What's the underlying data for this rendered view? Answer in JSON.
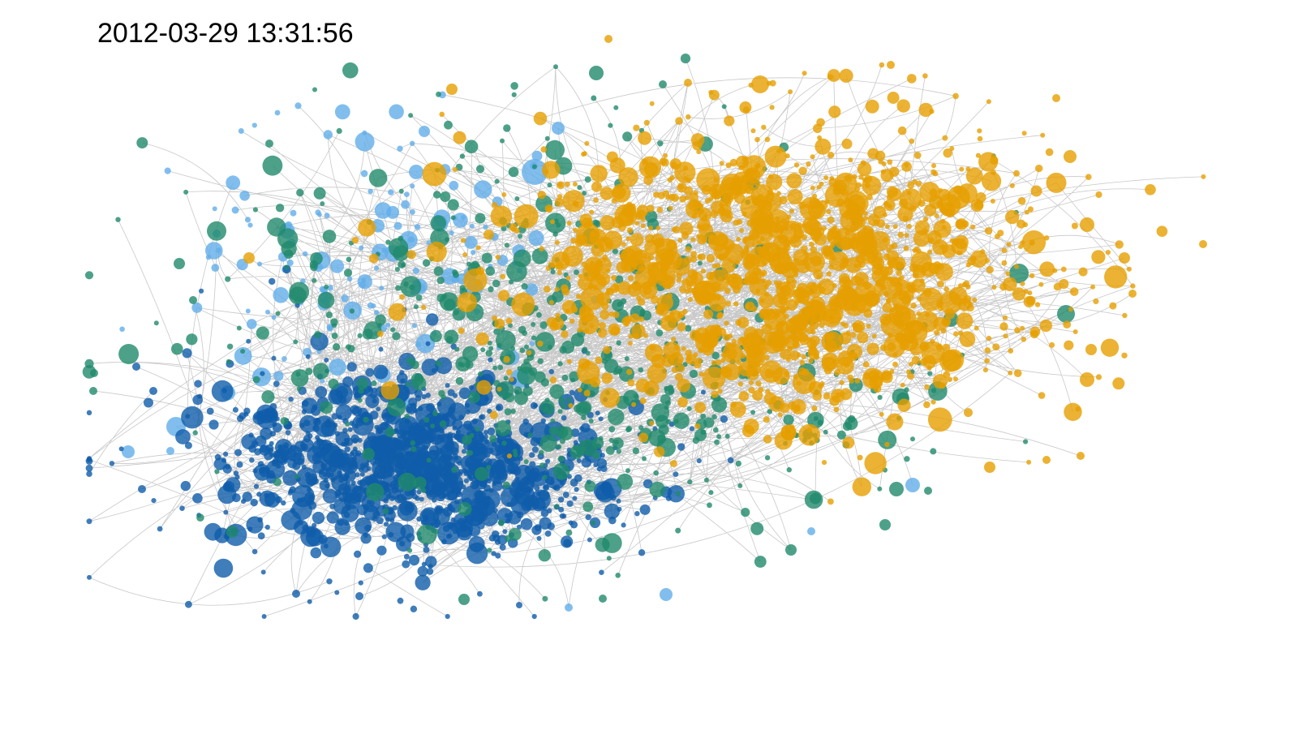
{
  "header": {
    "timestamp": "2012-03-29 13:31:56"
  },
  "graph": {
    "communities": [
      {
        "id": "orange",
        "color": "#E69F00"
      },
      {
        "id": "dark-blue",
        "color": "#0F5CAA"
      },
      {
        "id": "green",
        "color": "#218A6C"
      },
      {
        "id": "light-blue",
        "color": "#62AEEA"
      }
    ],
    "edge_color": "#9a9a9a"
  }
}
